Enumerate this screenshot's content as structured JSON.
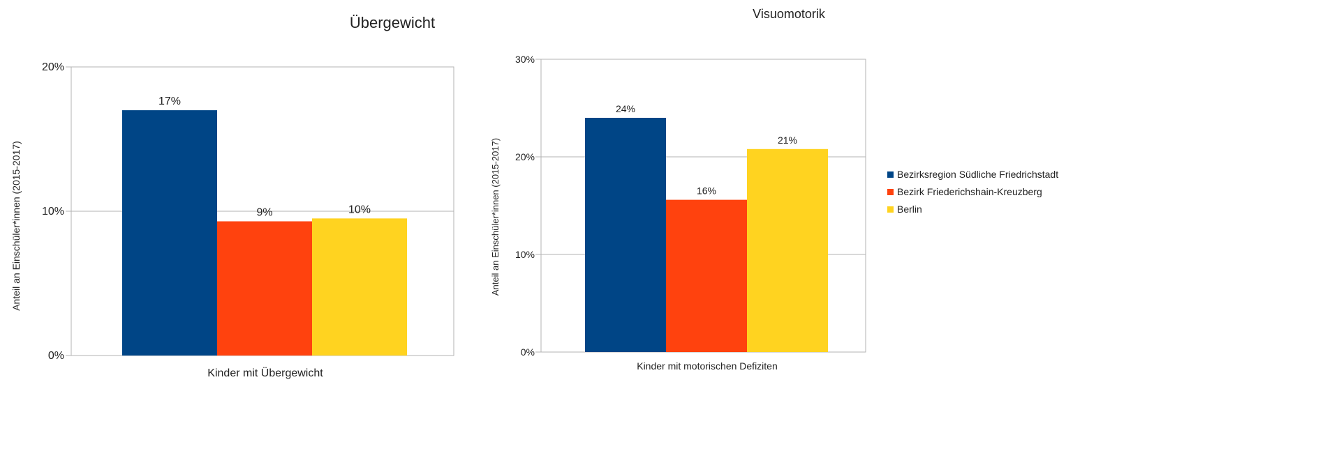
{
  "chart_data": [
    {
      "type": "bar",
      "title": "Übergewicht",
      "ylabel": "Anteil an Einschüler*innen (2015-2017)",
      "xlabel": "Kinder mit Übergewicht",
      "categories": [
        "Kinder mit Übergewicht"
      ],
      "ylim": [
        0,
        20
      ],
      "yticks": [
        "0%",
        "10%",
        "20%"
      ],
      "series": [
        {
          "name": "Bezirksregion Südliche Friedrichstadt",
          "values": [
            17
          ],
          "label": "17%",
          "color": "#004586"
        },
        {
          "name": "Bezirk Friederichshain-Kreuzberg",
          "values": [
            9.3
          ],
          "label": "9%",
          "color": "#ff420e"
        },
        {
          "name": "Berlin",
          "values": [
            9.5
          ],
          "label": "10%",
          "color": "#ffd320"
        }
      ],
      "grid": true
    },
    {
      "type": "bar",
      "title": "Visuomotorik",
      "ylabel": "Anteil an Einschüler*innen (2015-2017)",
      "xlabel": "Kinder mit motorischen Defiziten",
      "categories": [
        "Kinder mit motorischen Defiziten"
      ],
      "ylim": [
        0,
        30
      ],
      "yticks": [
        "0%",
        "10%",
        "20%",
        "30%"
      ],
      "series": [
        {
          "name": "Bezirksregion Südliche Friedrichstadt",
          "values": [
            24
          ],
          "label": "24%",
          "color": "#004586"
        },
        {
          "name": "Bezirk Friederichshain-Kreuzberg",
          "values": [
            15.6
          ],
          "label": "16%",
          "color": "#ff420e"
        },
        {
          "name": "Berlin",
          "values": [
            20.8
          ],
          "label": "21%",
          "color": "#ffd320"
        }
      ],
      "grid": true
    }
  ],
  "legend": {
    "placement": "right",
    "items": [
      {
        "label": "Bezirksregion Südliche Friedrichstadt",
        "color": "#004586"
      },
      {
        "label": "Bezirk Friederichshain-Kreuzberg",
        "color": "#ff420e"
      },
      {
        "label": "Berlin",
        "color": "#ffd320"
      }
    ]
  }
}
